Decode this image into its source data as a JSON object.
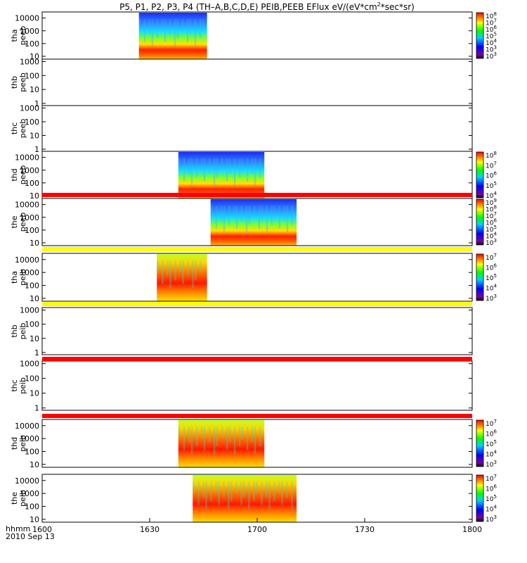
{
  "figure": {
    "title_main": "P5, P1, P2, P3, P4 (TH–A,B,C,D,E) PEIB,PEEB EFlux eV/(eV*cm",
    "title_sup": "2",
    "title_end": "*sec*sr)",
    "footer_hhmm": "hhmm",
    "footer_date": "2010 Sep 13",
    "x_ticks": [
      "1600",
      "1630",
      "1700",
      "1730",
      "1800"
    ],
    "x_tick_minutes": [
      0,
      30,
      60,
      90,
      120
    ]
  },
  "chart_data": {
    "type": "heatmap",
    "x_unit": "UT minutes after 16:00 on 2010 Sep 13",
    "xlim": [
      0,
      120
    ],
    "y_scale": "log",
    "colormap": "rainbow (purple-blue-cyan-green-yellow-red)",
    "panels": [
      {
        "probe": "tha",
        "product": "peeb",
        "label_line1": "tha",
        "label_line2": "peeb",
        "y_ticks": [
          "10000",
          "1000",
          "100",
          "10"
        ],
        "y_tick_values": [
          10000,
          1000,
          100,
          10
        ],
        "ylim": [
          6,
          30000
        ],
        "data_extent_minutes": [
          27,
          46
        ],
        "colorbar": true,
        "colorbar_labels": [
          [
            "10",
            "8"
          ],
          [
            "10",
            "7"
          ],
          [
            "10",
            "6"
          ],
          [
            "10",
            "5"
          ],
          [
            "10",
            "4"
          ],
          [
            "10",
            "3"
          ],
          [
            "10",
            "3"
          ]
        ],
        "status_bar_color": null
      },
      {
        "probe": "thb",
        "product": "peeb",
        "label_line1": "thb",
        "label_line2": "peeb",
        "y_ticks": [
          "1000",
          "100",
          "10",
          "1"
        ],
        "y_tick_values": [
          1000,
          100,
          10,
          1
        ],
        "ylim": [
          0.7,
          1500
        ],
        "data_extent_minutes": null,
        "colorbar": false,
        "colorbar_labels": [],
        "status_bar_color": null
      },
      {
        "probe": "thc",
        "product": "peeb",
        "label_line1": "thc",
        "label_line2": "peeb",
        "y_ticks": [
          "1000",
          "100",
          "10",
          "1"
        ],
        "y_tick_values": [
          1000,
          100,
          10,
          1
        ],
        "ylim": [
          0.7,
          1500
        ],
        "data_extent_minutes": null,
        "colorbar": false,
        "colorbar_labels": [],
        "status_bar_color": null
      },
      {
        "probe": "thd",
        "product": "peeb",
        "label_line1": "thd",
        "label_line2": "peeb",
        "y_ticks": [
          "10000",
          "1000",
          "100",
          "10"
        ],
        "y_tick_values": [
          10000,
          1000,
          100,
          10
        ],
        "ylim": [
          6,
          30000
        ],
        "data_extent_minutes": [
          38,
          62
        ],
        "colorbar": true,
        "colorbar_labels": [
          [
            "10",
            "8"
          ],
          [
            "10",
            "7"
          ],
          [
            "10",
            "6"
          ],
          [
            "10",
            "5"
          ],
          [
            "10",
            "4"
          ]
        ],
        "status_bar_color": null
      },
      {
        "probe": "the",
        "product": "peeb",
        "label_line1": "the",
        "label_line2": "peeb",
        "y_ticks": [
          "10000",
          "1000",
          "100",
          "10"
        ],
        "y_tick_values": [
          10000,
          1000,
          100,
          10
        ],
        "ylim": [
          6,
          30000
        ],
        "data_extent_minutes": [
          47,
          71
        ],
        "colorbar": true,
        "colorbar_labels": [
          [
            "10",
            "9"
          ],
          [
            "10",
            "8"
          ],
          [
            "10",
            "7"
          ],
          [
            "10",
            "6"
          ],
          [
            "10",
            "5"
          ],
          [
            "10",
            "4"
          ],
          [
            "10",
            "3"
          ]
        ],
        "status_bar_color": "#ff0000"
      },
      {
        "probe": "tha",
        "product": "peib",
        "label_line1": "tha",
        "label_line2": "peib",
        "y_ticks": [
          "10000",
          "1000",
          "100",
          "10"
        ],
        "y_tick_values": [
          10000,
          1000,
          100,
          10
        ],
        "ylim": [
          6,
          30000
        ],
        "data_extent_minutes": [
          32,
          46
        ],
        "colorbar": true,
        "colorbar_labels": [
          [
            "10",
            "7"
          ],
          [
            "10",
            "6"
          ],
          [
            "10",
            "5"
          ],
          [
            "10",
            "4"
          ],
          [
            "10",
            "3"
          ]
        ],
        "status_bar_color": "#ffff00"
      },
      {
        "probe": "thb",
        "product": "peib",
        "label_line1": "thb",
        "label_line2": "peib",
        "y_ticks": [
          "1000",
          "100",
          "10",
          "1"
        ],
        "y_tick_values": [
          1000,
          100,
          10,
          1
        ],
        "ylim": [
          0.7,
          1500
        ],
        "data_extent_minutes": null,
        "colorbar": false,
        "colorbar_labels": [],
        "status_bar_color": "#ffff00"
      },
      {
        "probe": "thc",
        "product": "peib",
        "label_line1": "thc",
        "label_line2": "peib",
        "y_ticks": [
          "1000",
          "100",
          "10",
          "1"
        ],
        "y_tick_values": [
          1000,
          100,
          10,
          1
        ],
        "ylim": [
          0.7,
          1500
        ],
        "data_extent_minutes": null,
        "colorbar": false,
        "colorbar_labels": [],
        "status_bar_color": "#ff0000"
      },
      {
        "probe": "thd",
        "product": "peib",
        "label_line1": "thd",
        "label_line2": "peib",
        "y_ticks": [
          "10000",
          "1000",
          "100",
          "10"
        ],
        "y_tick_values": [
          10000,
          1000,
          100,
          10
        ],
        "ylim": [
          6,
          30000
        ],
        "data_extent_minutes": [
          38,
          62
        ],
        "colorbar": true,
        "colorbar_labels": [
          [
            "10",
            "7"
          ],
          [
            "10",
            "6"
          ],
          [
            "10",
            "5"
          ],
          [
            "10",
            "4"
          ],
          [
            "10",
            "3"
          ]
        ],
        "status_bar_color": "#ff0000"
      },
      {
        "probe": "the",
        "product": "peib",
        "label_line1": "the",
        "label_line2": "peib",
        "y_ticks": [
          "10000",
          "1000",
          "100",
          "10"
        ],
        "y_tick_values": [
          10000,
          1000,
          100,
          10
        ],
        "ylim": [
          6,
          30000
        ],
        "data_extent_minutes": [
          42,
          71
        ],
        "colorbar": true,
        "colorbar_labels": [
          [
            "10",
            "7"
          ],
          [
            "10",
            "6"
          ],
          [
            "10",
            "5"
          ],
          [
            "10",
            "4"
          ],
          [
            "10",
            "3"
          ]
        ],
        "status_bar_color": null
      }
    ]
  }
}
